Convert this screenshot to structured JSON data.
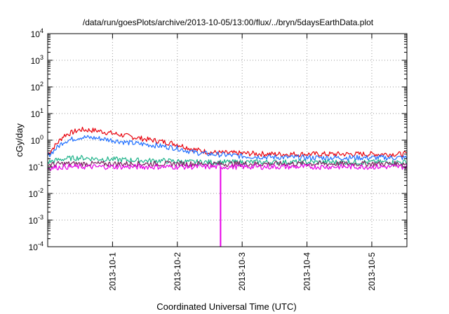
{
  "chart_data": {
    "type": "line",
    "title": "/data/run/goesPlots/archive/2013-10-05/13:00/flux/../bryn/5daysEarthData.plot",
    "xlabel": "Coordinated Universal Time (UTC)",
    "ylabel": "cGy/day",
    "yscale": "log",
    "ylim": [
      0.0001,
      10000
    ],
    "ytick_labels": [
      {
        "base": "10",
        "exp": "-4"
      },
      {
        "base": "10",
        "exp": "-3"
      },
      {
        "base": "10",
        "exp": "-2"
      },
      {
        "base": "10",
        "exp": "-1"
      },
      {
        "base": "10",
        "exp": "0"
      },
      {
        "base": "10",
        "exp": "1"
      },
      {
        "base": "10",
        "exp": "2"
      },
      {
        "base": "10",
        "exp": "3"
      },
      {
        "base": "10",
        "exp": "4"
      }
    ],
    "xlim": [
      "2013-09-30T00:00",
      "2013-10-05T13:00"
    ],
    "xticks": [
      "2013-10-1",
      "2013-10-2",
      "2013-10-3",
      "2013-10-4",
      "2013-10-5"
    ],
    "grid": true,
    "x": [
      "2013-09-30T00:00",
      "2013-09-30T06:00",
      "2013-09-30T12:00",
      "2013-09-30T18:00",
      "2013-10-01T00:00",
      "2013-10-01T06:00",
      "2013-10-01T12:00",
      "2013-10-01T18:00",
      "2013-10-02T00:00",
      "2013-10-02T06:00",
      "2013-10-02T12:00",
      "2013-10-02T18:00",
      "2013-10-03T00:00",
      "2013-10-03T12:00",
      "2013-10-04T00:00",
      "2013-10-04T12:00",
      "2013-10-05T00:00",
      "2013-10-05T13:00"
    ],
    "series": [
      {
        "color": "#e8000b",
        "values": [
          0.3,
          1.5,
          2.5,
          2.3,
          1.8,
          1.4,
          1.1,
          0.9,
          0.7,
          0.45,
          0.35,
          0.33,
          0.32,
          0.3,
          0.3,
          0.3,
          0.3,
          0.3
        ]
      },
      {
        "color": "#1f6fff",
        "values": [
          0.25,
          0.9,
          1.3,
          1.2,
          1.0,
          0.8,
          0.7,
          0.6,
          0.5,
          0.35,
          0.3,
          0.28,
          0.25,
          0.23,
          0.22,
          0.22,
          0.22,
          0.22
        ]
      },
      {
        "color": "#1fb38a",
        "values": [
          0.15,
          0.2,
          0.22,
          0.2,
          0.19,
          0.18,
          0.17,
          0.17,
          0.16,
          0.15,
          0.15,
          0.15,
          0.15,
          0.15,
          0.15,
          0.15,
          0.15,
          0.15
        ]
      },
      {
        "color": "#7a1f5c",
        "values": [
          0.12,
          0.13,
          0.13,
          0.13,
          0.13,
          0.13,
          0.13,
          0.13,
          0.13,
          0.13,
          0.13,
          0.13,
          0.13,
          0.13,
          0.13,
          0.13,
          0.13,
          0.13
        ]
      },
      {
        "color": "#e800e8",
        "values": [
          0.09,
          0.1,
          0.1,
          0.1,
          0.1,
          0.1,
          0.1,
          0.1,
          0.1,
          0.1,
          0.1,
          0.1,
          0.1,
          0.1,
          0.1,
          0.1,
          0.1,
          0.1
        ]
      }
    ],
    "annotations": [
      {
        "type": "spike",
        "series_color": "#e800e8",
        "x": "2013-10-02T16:00",
        "y": 0.0001
      }
    ]
  }
}
